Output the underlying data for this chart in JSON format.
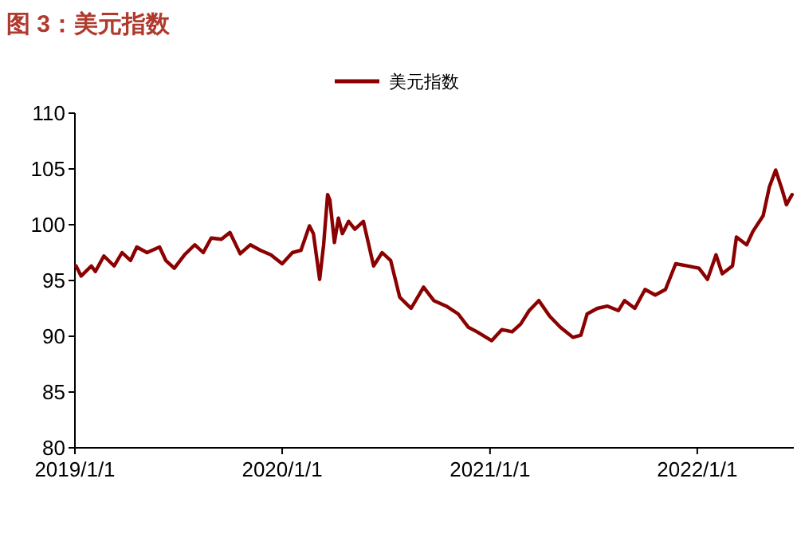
{
  "chart_data": {
    "type": "line",
    "title": "图 3：美元指数",
    "legend": "top",
    "grid": false,
    "marker": "none",
    "line_style": "solid",
    "xlim": [
      "2019-01-01",
      "2022-06-20"
    ],
    "ylim": [
      80,
      110
    ],
    "yticks": [
      80,
      85,
      90,
      95,
      100,
      105,
      110
    ],
    "xticks": [
      {
        "value": "2019-01-01",
        "label": "2019/1/1"
      },
      {
        "value": "2020-01-01",
        "label": "2020/1/1"
      },
      {
        "value": "2021-01-01",
        "label": "2021/1/1"
      },
      {
        "value": "2022-01-01",
        "label": "2022/1/1"
      }
    ],
    "series": [
      {
        "name": "美元指数",
        "color": "#8b0000",
        "x": [
          "2019-01-03",
          "2019-01-12",
          "2019-01-30",
          "2019-02-06",
          "2019-02-21",
          "2019-03-11",
          "2019-03-25",
          "2019-04-09",
          "2019-04-20",
          "2019-05-08",
          "2019-05-30",
          "2019-06-10",
          "2019-06-25",
          "2019-07-13",
          "2019-07-31",
          "2019-08-15",
          "2019-08-29",
          "2019-09-16",
          "2019-10-01",
          "2019-10-19",
          "2019-11-06",
          "2019-11-24",
          "2019-12-12",
          "2020-01-01",
          "2020-01-19",
          "2020-02-03",
          "2020-02-18",
          "2020-02-25",
          "2020-03-07",
          "2020-03-14",
          "2020-03-21",
          "2020-03-25",
          "2020-04-02",
          "2020-04-09",
          "2020-04-16",
          "2020-04-27",
          "2020-05-08",
          "2020-05-23",
          "2020-06-10",
          "2020-06-25",
          "2020-07-10",
          "2020-07-26",
          "2020-08-15",
          "2020-09-06",
          "2020-09-24",
          "2020-10-16",
          "2020-11-06",
          "2020-11-24",
          "2020-12-09",
          "2021-01-04",
          "2021-01-22",
          "2021-02-09",
          "2021-02-24",
          "2021-03-11",
          "2021-03-28",
          "2021-04-16",
          "2021-05-05",
          "2021-05-27",
          "2021-06-10",
          "2021-06-21",
          "2021-07-09",
          "2021-07-27",
          "2021-08-15",
          "2021-08-26",
          "2021-09-13",
          "2021-10-01",
          "2021-10-19",
          "2021-11-06",
          "2021-11-24",
          "2021-12-16",
          "2022-01-04",
          "2022-01-19",
          "2022-02-03",
          "2022-02-14",
          "2022-03-04",
          "2022-03-11",
          "2022-03-29",
          "2022-04-09",
          "2022-04-27",
          "2022-05-08",
          "2022-05-19",
          "2022-05-30",
          "2022-06-07",
          "2022-06-17"
        ],
        "values": [
          96.3,
          95.4,
          96.3,
          95.8,
          97.2,
          96.3,
          97.5,
          96.8,
          98.0,
          97.5,
          98.0,
          96.8,
          96.1,
          97.3,
          98.2,
          97.5,
          98.8,
          98.7,
          99.3,
          97.4,
          98.2,
          97.7,
          97.3,
          96.5,
          97.5,
          97.7,
          99.9,
          99.2,
          95.1,
          98.2,
          102.7,
          102.2,
          98.4,
          100.6,
          99.2,
          100.3,
          99.6,
          100.3,
          96.3,
          97.5,
          96.8,
          93.5,
          92.5,
          94.4,
          93.2,
          92.7,
          92.0,
          90.8,
          90.4,
          89.6,
          90.6,
          90.4,
          91.1,
          92.3,
          93.2,
          91.8,
          90.8,
          89.9,
          90.1,
          92.0,
          92.5,
          92.7,
          92.3,
          93.2,
          92.5,
          94.2,
          93.7,
          94.2,
          96.5,
          96.3,
          96.1,
          95.1,
          97.3,
          95.6,
          96.3,
          98.9,
          98.2,
          99.4,
          100.8,
          103.4,
          104.9,
          103.2,
          101.8,
          102.7
        ]
      }
    ]
  }
}
